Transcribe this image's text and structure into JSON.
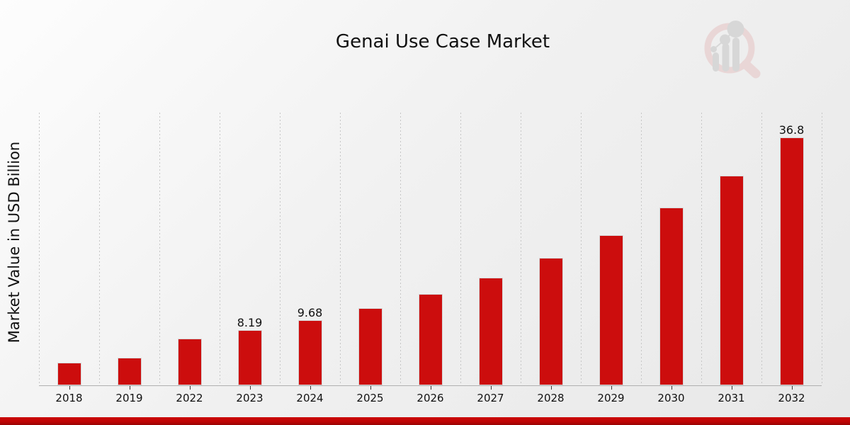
{
  "chart_data": {
    "type": "bar",
    "title": "Genai Use Case Market",
    "xlabel": "",
    "ylabel": "Market Value in USD Billion",
    "categories": [
      "2018",
      "2019",
      "2022",
      "2023",
      "2024",
      "2025",
      "2026",
      "2027",
      "2028",
      "2029",
      "2030",
      "2031",
      "2032"
    ],
    "values": [
      3.4,
      4.1,
      6.93,
      8.19,
      9.68,
      11.44,
      13.52,
      15.98,
      18.89,
      22.32,
      26.38,
      31.17,
      36.8
    ],
    "bar_labels": [
      "",
      "",
      "",
      "8.19",
      "9.68",
      "",
      "",
      "",
      "",
      "",
      "",
      "",
      "36.8"
    ],
    "ylim": [
      0,
      40.5
    ],
    "grid": "vertical dotted gridlines at category boundaries",
    "legend_position": "none",
    "colors": {
      "bar": "#cc0d0d",
      "bar_edge": "#d6d6d6",
      "gridline": "#c6c6c6",
      "axis_line": "#b0b0b0",
      "text": "#111111",
      "footer_stripe": "#bd0404",
      "watermark_ring": "#e6c8c8",
      "watermark_gray": "#c9c9c9"
    }
  },
  "watermark": {
    "icon": "magnifier-bar-chart-logo"
  }
}
